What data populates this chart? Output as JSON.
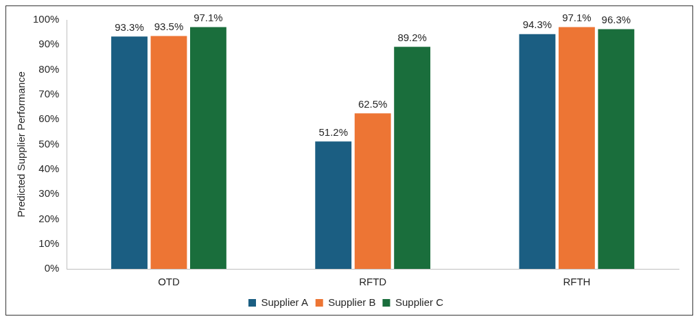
{
  "chart_data": {
    "type": "bar",
    "ylabel": "Predicted Supplier Performance",
    "categories": [
      "OTD",
      "RFTD",
      "RFTH"
    ],
    "series": [
      {
        "name": "Supplier A",
        "color": "#1b5e82",
        "values": [
          93.3,
          51.2,
          94.3
        ],
        "value_labels": [
          "93.3%",
          "51.2%",
          "94.3%"
        ]
      },
      {
        "name": "Supplier B",
        "color": "#ed7534",
        "values": [
          93.5,
          62.5,
          97.1
        ],
        "value_labels": [
          "93.5%",
          "62.5%",
          "97.1%"
        ]
      },
      {
        "name": "Supplier C",
        "color": "#1a6e3c",
        "values": [
          97.1,
          89.2,
          96.3
        ],
        "value_labels": [
          "97.1%",
          "89.2%",
          "96.3%"
        ]
      }
    ],
    "ylim": [
      0,
      100
    ],
    "yticks": [
      {
        "value": 0,
        "label": "0%"
      },
      {
        "value": 10,
        "label": "10%"
      },
      {
        "value": 20,
        "label": "20%"
      },
      {
        "value": 30,
        "label": "30%"
      },
      {
        "value": 40,
        "label": "40%"
      },
      {
        "value": 50,
        "label": "50%"
      },
      {
        "value": 60,
        "label": "60%"
      },
      {
        "value": 70,
        "label": "70%"
      },
      {
        "value": 80,
        "label": "80%"
      },
      {
        "value": 90,
        "label": "90%"
      },
      {
        "value": 100,
        "label": "100%"
      }
    ],
    "grid": false,
    "legend": "bottom"
  }
}
